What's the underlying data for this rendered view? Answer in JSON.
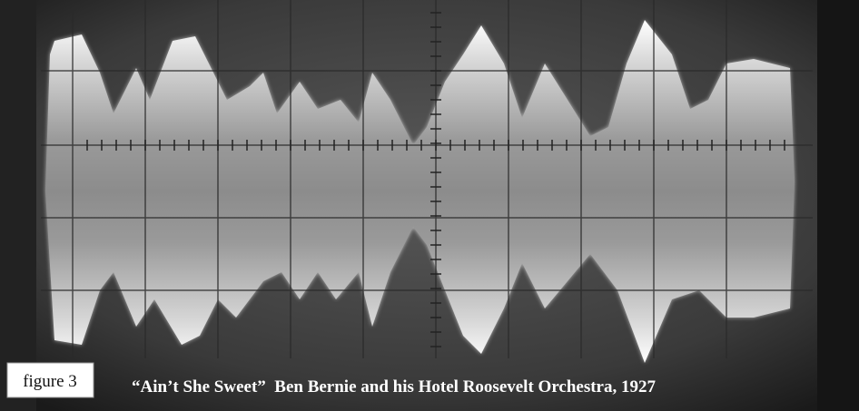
{
  "caption": {
    "label": "figure 3",
    "text": "“Ain’t She Sweet”  Ben Bernie and his Hotel Roosevelt Orchestra, 1927"
  }
}
